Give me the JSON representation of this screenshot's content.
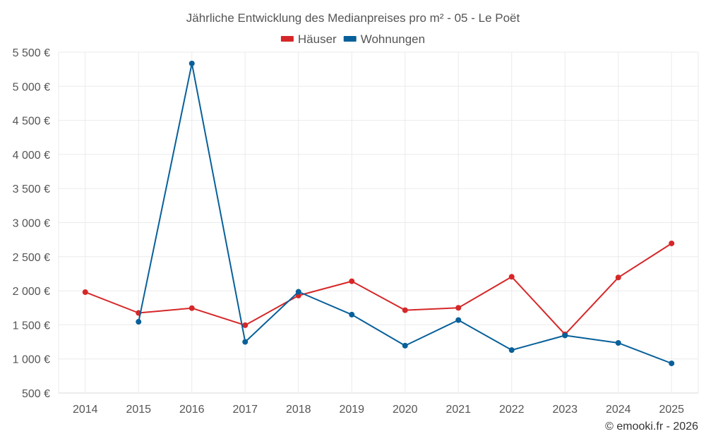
{
  "chart_data": {
    "type": "line",
    "title": "Jährliche Entwicklung des Medianpreises pro m² - 05 - Le Poët",
    "xlabel": "",
    "ylabel": "",
    "categories": [
      "2014",
      "2015",
      "2016",
      "2017",
      "2018",
      "2019",
      "2020",
      "2021",
      "2022",
      "2023",
      "2024",
      "2025"
    ],
    "ylim": [
      500,
      5500
    ],
    "yticks": [
      500,
      1000,
      1500,
      2000,
      2500,
      3000,
      3500,
      4000,
      4500,
      5000,
      5500
    ],
    "ytick_labels": [
      "500 €",
      "1 000 €",
      "1 500 €",
      "2 000 €",
      "2 500 €",
      "3 000 €",
      "3 500 €",
      "4 000 €",
      "4 500 €",
      "5 000 €",
      "5 500 €"
    ],
    "grid": true,
    "legend_position": "top-center",
    "series": [
      {
        "name": "Häuser",
        "color": "#d62728",
        "values": [
          1980,
          1675,
          1745,
          1495,
          1930,
          2140,
          1715,
          1750,
          2205,
          1360,
          2195,
          2695
        ]
      },
      {
        "name": "Wohnungen",
        "color": "#08609a",
        "values": [
          null,
          1545,
          5335,
          1250,
          1985,
          1650,
          1195,
          1570,
          1130,
          1345,
          1235,
          935
        ]
      }
    ]
  },
  "credit": "© emooki.fr - 2026"
}
